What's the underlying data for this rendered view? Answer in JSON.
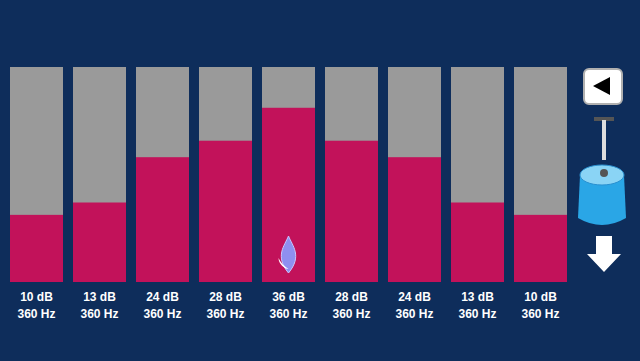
{
  "chart_data": {
    "type": "bar",
    "categories": [
      "360 Hz",
      "360 Hz",
      "360 Hz",
      "360 Hz",
      "360 Hz",
      "360 Hz",
      "360 Hz",
      "360 Hz",
      "360 Hz"
    ],
    "values": [
      10,
      13,
      24,
      28,
      36,
      28,
      24,
      13,
      10
    ],
    "value_labels": [
      "10 dB",
      "13 dB",
      "24 dB",
      "28 dB",
      "36 dB",
      "28 dB",
      "24 dB",
      "13 dB",
      "10 dB"
    ],
    "data_labels": true,
    "color": "#c2125a",
    "ylim": [
      -6.3,
      45.9
    ],
    "tick_labels": false,
    "grid": false
  }
}
